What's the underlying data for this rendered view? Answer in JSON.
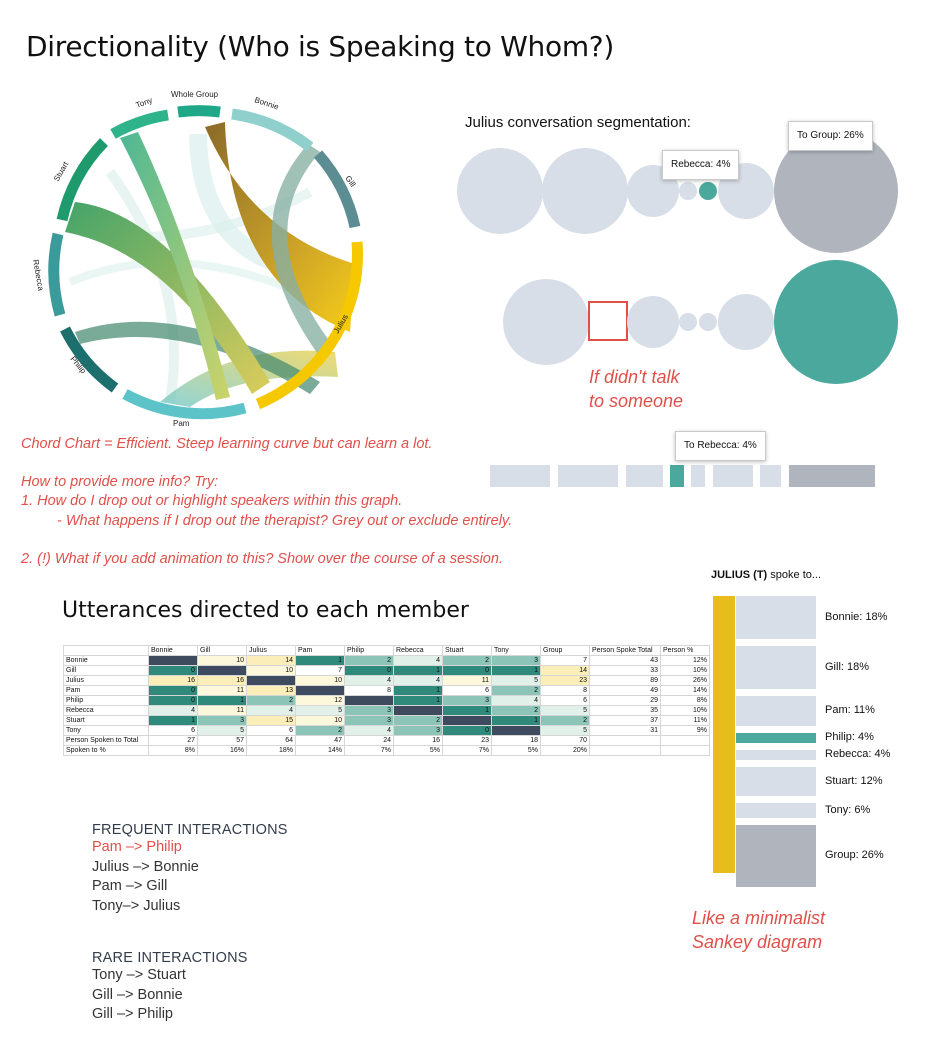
{
  "title": "Directionality (Who is Speaking to Whom?)",
  "chord": {
    "labels": [
      "Tony",
      "Whole Group",
      "Bonnie",
      "Gill",
      "Julius",
      "Pam",
      "Philip",
      "Rebecca",
      "Stuart"
    ]
  },
  "notes": {
    "line1": "Chord Chart = Efficient. Steep learning curve but can learn a lot.",
    "line2": "How to provide more info? Try:",
    "line3": "1. How do I drop out or highlight speakers within this graph.",
    "line4": "- What happens if I drop out the therapist? Grey out or exclude entirely.",
    "line5": "2. (!) What if you add animation to this? Show over the course of a session."
  },
  "segmentation": {
    "title": "Julius conversation segmentation:",
    "tip_rebecca": "Rebecca:  4%",
    "tip_group": "To Group:   26%",
    "tip_bar": "To Rebecca:    4%",
    "if_note_1": "If didn't talk",
    "if_note_2": "to someone",
    "colors": {
      "light": "#d8dee8",
      "teal": "#4aa89c",
      "grey": "#b0b5bd"
    }
  },
  "table": {
    "title": "Utterances directed to each member",
    "headers": [
      "",
      "Bonnie",
      "Gill",
      "Julius",
      "Pam",
      "Philip",
      "Rebecca",
      "Stuart",
      "Tony",
      "Group",
      "Person Spoke Total",
      "Person %"
    ],
    "rows": [
      [
        "Bonnie",
        "",
        "10",
        "14",
        "1",
        "2",
        "4",
        "2",
        "3",
        "7",
        "43",
        "12%"
      ],
      [
        "Gill",
        "0",
        "",
        "10",
        "7",
        "0",
        "1",
        "0",
        "1",
        "14",
        "33",
        "10%"
      ],
      [
        "Julius",
        "16",
        "16",
        "",
        "10",
        "4",
        "4",
        "11",
        "5",
        "23",
        "89",
        "26%"
      ],
      [
        "Pam",
        "0",
        "11",
        "13",
        "",
        "8",
        "1",
        "6",
        "2",
        "8",
        "49",
        "14%"
      ],
      [
        "Philip",
        "0",
        "1",
        "2",
        "12",
        "",
        "1",
        "3",
        "4",
        "6",
        "29",
        "8%"
      ],
      [
        "Rebecca",
        "4",
        "11",
        "4",
        "5",
        "3",
        "",
        "1",
        "2",
        "5",
        "35",
        "10%"
      ],
      [
        "Stuart",
        "1",
        "3",
        "15",
        "10",
        "3",
        "2",
        "",
        "1",
        "2",
        "37",
        "11%"
      ],
      [
        "Tony",
        "6",
        "5",
        "6",
        "2",
        "4",
        "3",
        "0",
        "",
        "5",
        "31",
        "9%"
      ]
    ],
    "footer": [
      [
        "Person Spoken to Total",
        "27",
        "57",
        "64",
        "47",
        "24",
        "16",
        "23",
        "18",
        "70",
        "",
        ""
      ],
      [
        "Spoken to %",
        "8%",
        "16%",
        "18%",
        "14%",
        "7%",
        "5%",
        "7%",
        "5%",
        "20%",
        "",
        ""
      ]
    ]
  },
  "frequent": {
    "heading": "FREQUENT INTERACTIONS",
    "items": [
      "Pam –> Philip",
      "Julius –> Bonnie",
      "Pam –> Gill",
      "Tony–> Julius"
    ]
  },
  "rare": {
    "heading": "RARE INTERACTIONS",
    "items": [
      "Tony –> Stuart",
      "Gill –> Bonnie",
      "Gill –> Philip"
    ]
  },
  "sankey": {
    "title_bold": "JULIUS (T)",
    "title_rest": " spoke to...",
    "items": [
      {
        "label": "Bonnie: 18%",
        "value": 18,
        "kind": "light"
      },
      {
        "label": "Gill: 18%",
        "value": 18,
        "kind": "light"
      },
      {
        "label": "Pam: 11%",
        "value": 11,
        "kind": "light"
      },
      {
        "label": "Philip: 4%",
        "value": 4,
        "kind": "teal"
      },
      {
        "label": "Rebecca: 4%",
        "value": 4,
        "kind": "light"
      },
      {
        "label": "Stuart: 12%",
        "value": 12,
        "kind": "light"
      },
      {
        "label": "Tony: 6%",
        "value": 6,
        "kind": "light"
      },
      {
        "label": "Group: 26%",
        "value": 26,
        "kind": "grey"
      }
    ],
    "note_1": "Like a minimalist",
    "note_2": "Sankey diagram",
    "colors": {
      "source": "#e6bd1c",
      "light": "#d8dee8",
      "teal": "#4aa89c",
      "grey": "#b0b5bd"
    }
  }
}
